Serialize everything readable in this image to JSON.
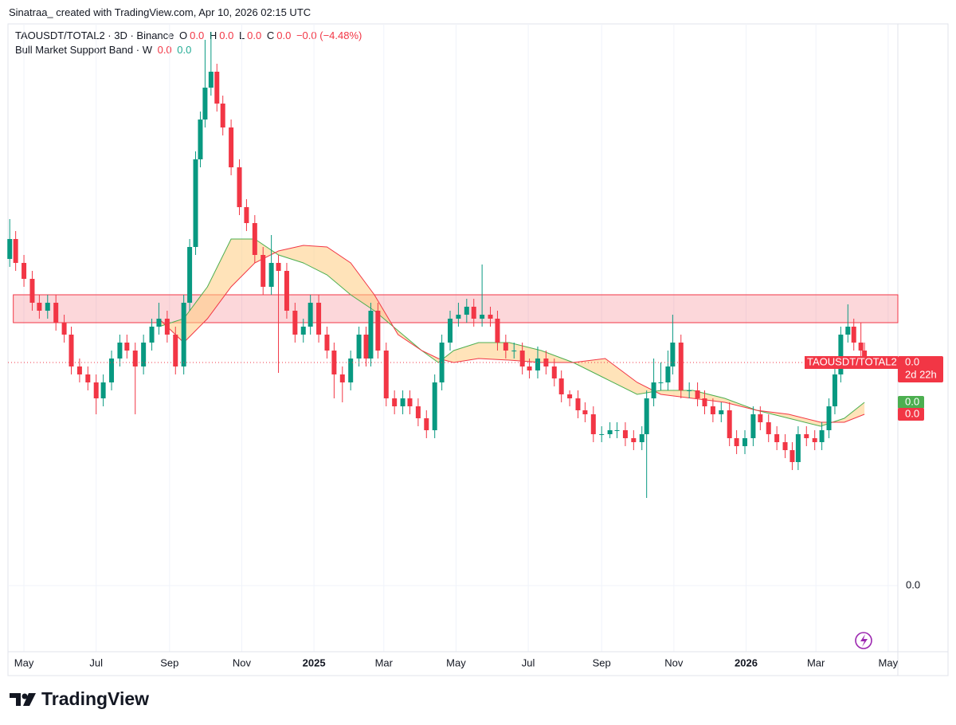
{
  "header": "Sinatraa_ created with TradingView.com, Apr 10, 2026 02:15 UTC",
  "footer": "TradingView",
  "chart_data": {
    "type": "candlestick",
    "symbol": "TAOUSDT/TOTAL2 · 3D · Binance",
    "ohlc_legend": [
      [
        "O",
        "0.0"
      ],
      [
        "H",
        "0.0"
      ],
      [
        "L",
        "0.0"
      ],
      [
        "C",
        "0.0"
      ]
    ],
    "change": "−0.0 (−4.48%)",
    "indicator": "Bull Market Support Band · W",
    "indicator_values": [
      "0.0",
      "0.0"
    ],
    "last_label": "0.0",
    "countdown": "2d 22h",
    "xlim": [
      -13.5,
      738.2
    ],
    "xticks": [
      {
        "value": 0,
        "label": "May"
      },
      {
        "value": 61,
        "label": "Jul"
      },
      {
        "value": 123,
        "label": "Sep"
      },
      {
        "value": 184,
        "label": "Nov"
      },
      {
        "value": 245,
        "label": "2025"
      },
      {
        "value": 304,
        "label": "Mar"
      },
      {
        "value": 365,
        "label": "May"
      },
      {
        "value": 426,
        "label": "Jul"
      },
      {
        "value": 488,
        "label": "Sep"
      },
      {
        "value": 549,
        "label": "Nov"
      },
      {
        "value": 610,
        "label": "2026"
      },
      {
        "value": 669,
        "label": "Mar"
      },
      {
        "value": 730,
        "label": "May"
      }
    ],
    "ylim": [
      -8e-10,
      7e-09
    ],
    "yticks": [
      {
        "value": 0,
        "label": "0.0"
      }
    ],
    "grid": true,
    "zone": {
      "from": -9,
      "top": 3.65e-09,
      "bottom": 3.3e-09,
      "color": "#f23645"
    },
    "series": [
      {
        "name": "TAOUSDT/TOTAL2",
        "up_color": "#089981",
        "down_color": "#f23645",
        "x": [
          -12,
          -7,
          0,
          7,
          13,
          20,
          27,
          34,
          40,
          47,
          54,
          61,
          67,
          74,
          81,
          87,
          94,
          101,
          108,
          114,
          121,
          128,
          135,
          140,
          145,
          149,
          153,
          158,
          163,
          168,
          175,
          182,
          188,
          195,
          202,
          209,
          215,
          222,
          229,
          236,
          242,
          249,
          256,
          262,
          269,
          276,
          283,
          289,
          293,
          299,
          306,
          313,
          320,
          326,
          333,
          340,
          347,
          353,
          360,
          367,
          374,
          380,
          387,
          394,
          400,
          407,
          414,
          421,
          427,
          434,
          441,
          448,
          454,
          461,
          468,
          474,
          481,
          488,
          495,
          501,
          508,
          515,
          522,
          526,
          532,
          538,
          544,
          548,
          555,
          562,
          569,
          575,
          582,
          589,
          596,
          602,
          609,
          616,
          622,
          629,
          636,
          643,
          649,
          654,
          661,
          668,
          674,
          680,
          685,
          690,
          696,
          701,
          707,
          710
        ],
        "open": [
          4.1e-09,
          4.35e-09,
          4.05e-09,
          3.85e-09,
          3.55e-09,
          3.45e-09,
          3.55e-09,
          3.3e-09,
          3.15e-09,
          2.75e-09,
          2.65e-09,
          2.55e-09,
          2.35e-09,
          2.55e-09,
          2.85e-09,
          3.05e-09,
          2.95e-09,
          2.75e-09,
          3.05e-09,
          3.25e-09,
          3.35e-09,
          3.15e-09,
          2.75e-09,
          3.55e-09,
          4.25e-09,
          5.35e-09,
          5.85e-09,
          6.25e-09,
          6.45e-09,
          6.05e-09,
          5.75e-09,
          5.25e-09,
          4.75e-09,
          4.55e-09,
          4.15e-09,
          3.75e-09,
          4.05e-09,
          3.95e-09,
          3.45e-09,
          3.15e-09,
          3.25e-09,
          3.55e-09,
          3.15e-09,
          2.95e-09,
          2.65e-09,
          2.55e-09,
          2.85e-09,
          3.15e-09,
          2.85e-09,
          3.45e-09,
          2.95e-09,
          2.35e-09,
          2.25e-09,
          2.35e-09,
          2.25e-09,
          2.1e-09,
          1.95e-09,
          2.55e-09,
          3.05e-09,
          3.35e-09,
          3.4e-09,
          3.5e-09,
          3.35e-09,
          3.4e-09,
          3.35e-09,
          3.05e-09,
          2.95e-09,
          2.95e-09,
          2.75e-09,
          2.7e-09,
          2.85e-09,
          2.75e-09,
          2.6e-09,
          2.4e-09,
          2.35e-09,
          2.2e-09,
          2.15e-09,
          1.9e-09,
          1.9e-09,
          1.95e-09,
          1.95e-09,
          1.85e-09,
          1.8e-09,
          1.9e-09,
          2.35e-09,
          2.55e-09,
          2.55e-09,
          2.75e-09,
          3.05e-09,
          2.45e-09,
          2.45e-09,
          2.35e-09,
          2.25e-09,
          2.15e-09,
          2.2e-09,
          1.85e-09,
          1.75e-09,
          1.85e-09,
          2.15e-09,
          2.05e-09,
          1.9e-09,
          1.8e-09,
          1.7e-09,
          1.55e-09,
          1.9e-09,
          1.85e-09,
          1.8e-09,
          1.95e-09,
          2.25e-09,
          2.65e-09,
          3.15e-09,
          3.25e-09,
          3.05e-09,
          2.95e-09
        ],
        "high": [
          4.6e-09,
          4.45e-09,
          4.15e-09,
          3.95e-09,
          3.65e-09,
          3.65e-09,
          3.65e-09,
          3.4e-09,
          3.25e-09,
          2.85e-09,
          2.75e-09,
          2.65e-09,
          2.65e-09,
          2.95e-09,
          3.15e-09,
          3.15e-09,
          3.05e-09,
          3.15e-09,
          3.35e-09,
          3.55e-09,
          3.45e-09,
          3.25e-09,
          3.65e-09,
          4.35e-09,
          5.45e-09,
          5.95e-09,
          6.85e-09,
          6.95e-09,
          6.55e-09,
          6.15e-09,
          5.85e-09,
          5.35e-09,
          4.85e-09,
          4.65e-09,
          4.25e-09,
          4.4e-09,
          4.15e-09,
          4.05e-09,
          3.55e-09,
          3.35e-09,
          3.65e-09,
          3.65e-09,
          3.25e-09,
          3.05e-09,
          2.75e-09,
          2.95e-09,
          3.25e-09,
          3.25e-09,
          3.55e-09,
          3.55e-09,
          3.05e-09,
          2.45e-09,
          2.45e-09,
          2.45e-09,
          2.35e-09,
          2.2e-09,
          2.65e-09,
          3.15e-09,
          3.45e-09,
          3.55e-09,
          3.6e-09,
          3.6e-09,
          4.03e-09,
          3.5e-09,
          3.45e-09,
          3.15e-09,
          3.05e-09,
          3.05e-09,
          2.85e-09,
          3e-09,
          2.95e-09,
          2.85e-09,
          2.7e-09,
          2.45e-09,
          2.45e-09,
          2.3e-09,
          2.25e-09,
          2e-09,
          2.05e-09,
          2.05e-09,
          2.05e-09,
          1.95e-09,
          2e-09,
          2.45e-09,
          2.85e-09,
          2.8e-09,
          2.95e-09,
          3.4e-09,
          3.15e-09,
          2.55e-09,
          2.55e-09,
          2.45e-09,
          2.35e-09,
          2.3e-09,
          2.3e-09,
          1.95e-09,
          1.95e-09,
          2.25e-09,
          2.25e-09,
          2.15e-09,
          2e-09,
          1.9e-09,
          1.8e-09,
          2e-09,
          2e-09,
          1.95e-09,
          2.05e-09,
          2.35e-09,
          2.75e-09,
          3.25e-09,
          3.53e-09,
          3.35e-09,
          3.3e-09,
          3.05e-09
        ],
        "low": [
          4e-09,
          3.95e-09,
          3.75e-09,
          3.45e-09,
          3.35e-09,
          3.35e-09,
          3.2e-09,
          3.05e-09,
          2.65e-09,
          2.55e-09,
          2.45e-09,
          2.15e-09,
          2.25e-09,
          2.45e-09,
          2.75e-09,
          2.85e-09,
          2.15e-09,
          2.65e-09,
          2.95e-09,
          3.15e-09,
          3.05e-09,
          2.65e-09,
          2.65e-09,
          3.45e-09,
          4.15e-09,
          5.25e-09,
          5.75e-09,
          6.15e-09,
          5.95e-09,
          5.65e-09,
          5.15e-09,
          4.65e-09,
          4.45e-09,
          4.05e-09,
          3.65e-09,
          3.65e-09,
          2.67e-09,
          3.35e-09,
          3.05e-09,
          3.05e-09,
          3.15e-09,
          3.05e-09,
          2.85e-09,
          2.35e-09,
          2.3e-09,
          2.45e-09,
          2.75e-09,
          2.75e-09,
          2.75e-09,
          2.85e-09,
          2.25e-09,
          2.15e-09,
          2.15e-09,
          2.15e-09,
          2e-09,
          1.85e-09,
          1.85e-09,
          2.45e-09,
          2.95e-09,
          3.25e-09,
          3.3e-09,
          3.25e-09,
          3.25e-09,
          3.25e-09,
          2.95e-09,
          2.85e-09,
          2.85e-09,
          2.65e-09,
          2.6e-09,
          2.6e-09,
          2.65e-09,
          2.5e-09,
          2.3e-09,
          2.25e-09,
          2.1e-09,
          2.05e-09,
          1.8e-09,
          1.8e-09,
          1.85e-09,
          1.85e-09,
          1.75e-09,
          1.7e-09,
          1.7e-09,
          1.1e-09,
          2.25e-09,
          2.45e-09,
          2.45e-09,
          2.65e-09,
          2.35e-09,
          2.35e-09,
          2.25e-09,
          2.15e-09,
          2.05e-09,
          2.05e-09,
          1.75e-09,
          1.65e-09,
          1.65e-09,
          1.75e-09,
          1.95e-09,
          1.8e-09,
          1.7e-09,
          1.6e-09,
          1.45e-09,
          1.45e-09,
          1.75e-09,
          1.7e-09,
          1.7e-09,
          1.85e-09,
          2.15e-09,
          2.55e-09,
          3.05e-09,
          2.95e-09,
          2.85e-09,
          2.75e-09
        ],
        "close": [
          4.35e-09,
          4.05e-09,
          3.85e-09,
          3.55e-09,
          3.45e-09,
          3.55e-09,
          3.3e-09,
          3.15e-09,
          2.75e-09,
          2.65e-09,
          2.55e-09,
          2.35e-09,
          2.55e-09,
          2.85e-09,
          3.05e-09,
          2.95e-09,
          2.75e-09,
          3.05e-09,
          3.25e-09,
          3.35e-09,
          3.15e-09,
          2.75e-09,
          3.55e-09,
          4.25e-09,
          5.35e-09,
          5.85e-09,
          6.25e-09,
          6.45e-09,
          6.05e-09,
          5.75e-09,
          5.25e-09,
          4.75e-09,
          4.55e-09,
          4.15e-09,
          3.75e-09,
          4.05e-09,
          3.95e-09,
          3.45e-09,
          3.15e-09,
          3.25e-09,
          3.55e-09,
          3.15e-09,
          2.95e-09,
          2.65e-09,
          2.55e-09,
          2.85e-09,
          3.15e-09,
          2.85e-09,
          3.45e-09,
          2.95e-09,
          2.35e-09,
          2.25e-09,
          2.35e-09,
          2.25e-09,
          2.1e-09,
          1.95e-09,
          2.55e-09,
          3.05e-09,
          3.35e-09,
          3.4e-09,
          3.5e-09,
          3.35e-09,
          3.4e-09,
          3.35e-09,
          3.05e-09,
          2.95e-09,
          2.95e-09,
          2.75e-09,
          2.7e-09,
          2.85e-09,
          2.75e-09,
          2.6e-09,
          2.4e-09,
          2.35e-09,
          2.2e-09,
          2.15e-09,
          1.9e-09,
          1.9e-09,
          1.95e-09,
          1.95e-09,
          1.85e-09,
          1.8e-09,
          1.9e-09,
          2.35e-09,
          2.55e-09,
          2.55e-09,
          2.75e-09,
          3.05e-09,
          2.45e-09,
          2.45e-09,
          2.35e-09,
          2.25e-09,
          2.15e-09,
          2.2e-09,
          1.85e-09,
          1.75e-09,
          1.85e-09,
          2.15e-09,
          2.05e-09,
          1.9e-09,
          1.8e-09,
          1.7e-09,
          1.55e-09,
          1.9e-09,
          1.85e-09,
          1.8e-09,
          1.95e-09,
          2.25e-09,
          2.65e-09,
          3.15e-09,
          3.25e-09,
          3.05e-09,
          2.95e-09,
          2.8e-09
        ]
      }
    ],
    "band_x": [
      114,
      135,
      155,
      175,
      195,
      215,
      236,
      256,
      276,
      296,
      316,
      336,
      350,
      363,
      384,
      410,
      437,
      464,
      491,
      518,
      538,
      565,
      592,
      619,
      646,
      673,
      693,
      710
    ],
    "band_fill": "#ffcc80",
    "bands": [
      {
        "color": "#4caf50",
        "last_label": "0.0",
        "values": [
          3.25e-09,
          3.35e-09,
          3.75e-09,
          4.35e-09,
          4.35e-09,
          4.15e-09,
          4.05e-09,
          3.9e-09,
          3.65e-09,
          3.45e-09,
          3.2e-09,
          2.95e-09,
          2.8e-09,
          2.95e-09,
          3.05e-09,
          3.05e-09,
          2.95e-09,
          2.8e-09,
          2.6e-09,
          2.4e-09,
          2.45e-09,
          2.45e-09,
          2.35e-09,
          2.2e-09,
          2.1e-09,
          2e-09,
          2.1e-09,
          2.3e-09
        ]
      },
      {
        "color": "#f23645",
        "last_label": "0.0",
        "values": [
          3.35e-09,
          3.05e-09,
          3.35e-09,
          3.75e-09,
          4.05e-09,
          4.2e-09,
          4.27e-09,
          4.25e-09,
          4.05e-09,
          3.65e-09,
          3.15e-09,
          2.95e-09,
          2.85e-09,
          2.8e-09,
          2.85e-09,
          2.83e-09,
          2.8e-09,
          2.8e-09,
          2.85e-09,
          2.55e-09,
          2.4e-09,
          2.35e-09,
          2.3e-09,
          2.2e-09,
          2.15e-09,
          2.05e-09,
          2.05e-09,
          2.15e-09
        ]
      }
    ]
  }
}
